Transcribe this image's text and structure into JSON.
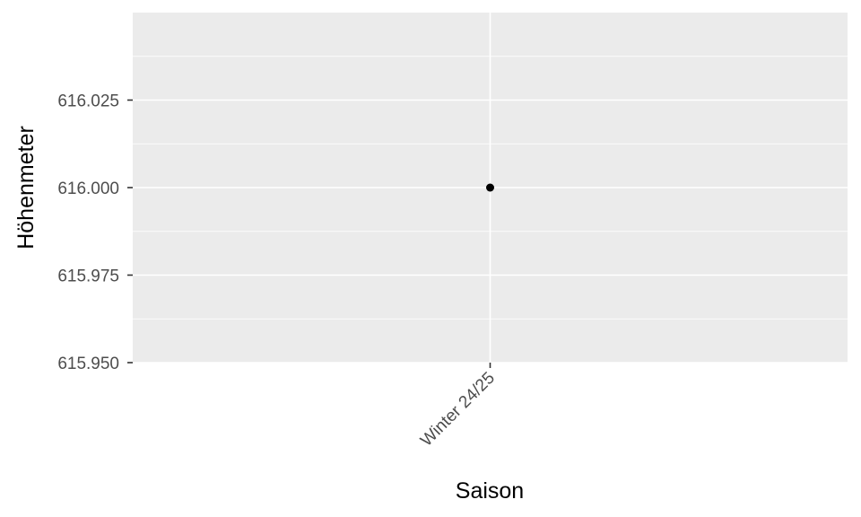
{
  "chart_data": {
    "type": "scatter",
    "title": "",
    "xlabel": "Saison",
    "ylabel": "Höhenmeter",
    "categories": [
      "Winter 24/25"
    ],
    "x": [
      "Winter 24/25"
    ],
    "y": [
      616.0
    ],
    "y_ticks": [
      "615.950",
      "615.975",
      "616.000",
      "616.025"
    ],
    "y_tick_values": [
      615.95,
      615.975,
      616.0,
      616.025
    ],
    "ylim": [
      615.95,
      616.05
    ],
    "grid": true,
    "legend": "none",
    "colors": {
      "panel_background": "#ebebeb",
      "grid_line": "#ffffff",
      "point": "#000000",
      "tick_label": "#4d4d4d",
      "axis_title": "#000000",
      "tick_mark": "#333333"
    }
  }
}
